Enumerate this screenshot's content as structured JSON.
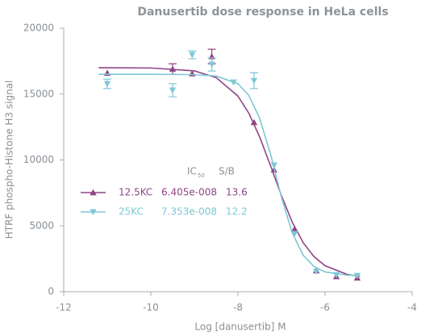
{
  "chart_data": {
    "type": "scatter",
    "title": "Danusertib dose response in HeLa cells",
    "x_label": "Log [danusertib] M",
    "y_label": "HTRF phospho-Histone H3 signal",
    "xlim": [
      -12,
      -4
    ],
    "xticks": [
      -12,
      -10,
      -8,
      -6,
      -4
    ],
    "ylim": [
      0,
      20000
    ],
    "yticks": [
      0,
      5000,
      10000,
      15000,
      20000
    ],
    "legend_headers": {
      "ic": "IC",
      "ic_sub": "50",
      "sb": "S/B"
    },
    "series": [
      {
        "name": "12.5KC",
        "color": "#8e4585",
        "marker": "triangle-up",
        "ic50": "6.405e-008",
        "sb": 13.6,
        "x": [
          -11,
          -9.5,
          -9.05,
          -8.6,
          -7.63,
          -7.17,
          -6.7,
          -6.2,
          -5.74,
          -5.26
        ],
        "values": [
          16600,
          16900,
          16550,
          17850,
          12850,
          9250,
          4750,
          1600,
          1150,
          1050
        ],
        "errors": [
          null,
          400,
          null,
          550,
          null,
          null,
          null,
          null,
          null,
          null
        ],
        "fit": {
          "x": [
            -11.2,
            -10,
            -9,
            -8.5,
            -8,
            -7.75,
            -7.5,
            -7.25,
            -7,
            -6.75,
            -6.5,
            -6.25,
            -6,
            -5.5,
            -5.2
          ],
          "values": [
            17000,
            16980,
            16760,
            16250,
            14850,
            13550,
            11740,
            9550,
            7280,
            5260,
            3710,
            2650,
            1970,
            1320,
            1160
          ]
        }
      },
      {
        "name": "25KC",
        "color": "#7ec8d6",
        "marker": "triangle-down",
        "ic50": "7.353e-008",
        "sb": 12.2,
        "x": [
          -11,
          -9.5,
          -9.05,
          -8.6,
          -8.1,
          -7.63,
          -7.17,
          -6.7,
          -6.2,
          -5.74,
          -5.26
        ],
        "values": [
          15780,
          15290,
          17980,
          17250,
          15900,
          16020,
          9600,
          4400,
          1530,
          1280,
          1220
        ],
        "errors": [
          350,
          500,
          300,
          500,
          null,
          600,
          null,
          null,
          null,
          null,
          null
        ],
        "fit": {
          "x": [
            -11.2,
            -10,
            -9,
            -8.5,
            -8,
            -7.75,
            -7.5,
            -7.25,
            -7,
            -6.75,
            -6.5,
            -6.25,
            -6,
            -5.5,
            -5.2
          ],
          "values": [
            16500,
            16500,
            16475,
            16370,
            15790,
            14900,
            13160,
            10420,
            7160,
            4440,
            2760,
            1900,
            1500,
            1255,
            1220
          ]
        }
      }
    ]
  }
}
